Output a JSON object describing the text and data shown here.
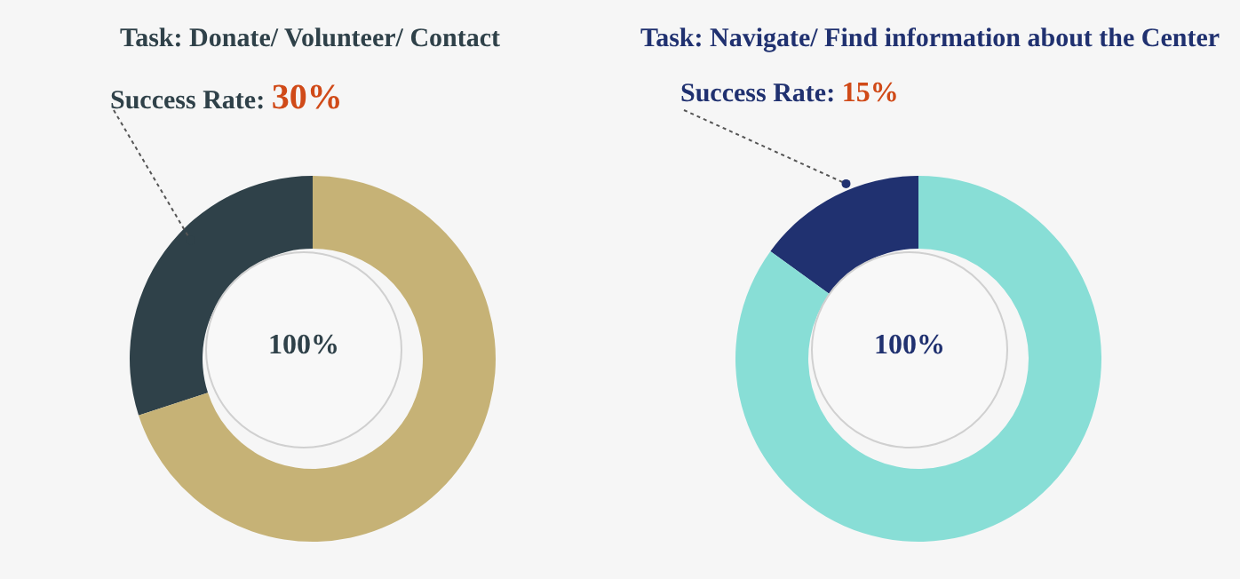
{
  "chart_data": [
    {
      "type": "donut",
      "title": "Task: Donate/ Volunteer/ Contact",
      "categories": [
        null,
        null
      ],
      "values": [
        30,
        70
      ],
      "colors": [
        "#2f4149",
        "#c6b276"
      ],
      "annotations": [
        "Success Rate: 30%",
        "100%"
      ]
    },
    {
      "type": "donut",
      "title": "Task: Navigate/ Find information about the Center",
      "categories": [
        null,
        null
      ],
      "values": [
        15,
        85
      ],
      "colors": [
        "#203170",
        "#88ded6"
      ],
      "annotations": [
        "Success Rate: 15%",
        "100%"
      ]
    }
  ]
}
